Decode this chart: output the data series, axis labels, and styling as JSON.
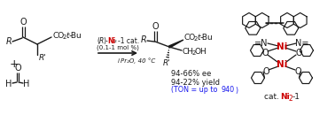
{
  "bg_color": "#ffffff",
  "red_color": "#cc0000",
  "blue_color": "#1a1aee",
  "black_color": "#1a1a1a",
  "ee_text": "94-66% ee",
  "yield_text": "94-22% yield",
  "ton_pre": "(TON = up to ",
  "ton_num": "940",
  "ton_post": ")",
  "cat_line1_pre": "(R)-",
  "cat_line1_ni": "Ni",
  "cat_line1_post": "₂-1 cat.",
  "cat_line2": "(0.1-1 mol %)",
  "cat_line3_pre": "i",
  "cat_line3_main": "Pr₂O, 40 °C",
  "cat_label_pre": "cat. ",
  "cat_label_ni": "Ni",
  "cat_label_post": "₂-1"
}
